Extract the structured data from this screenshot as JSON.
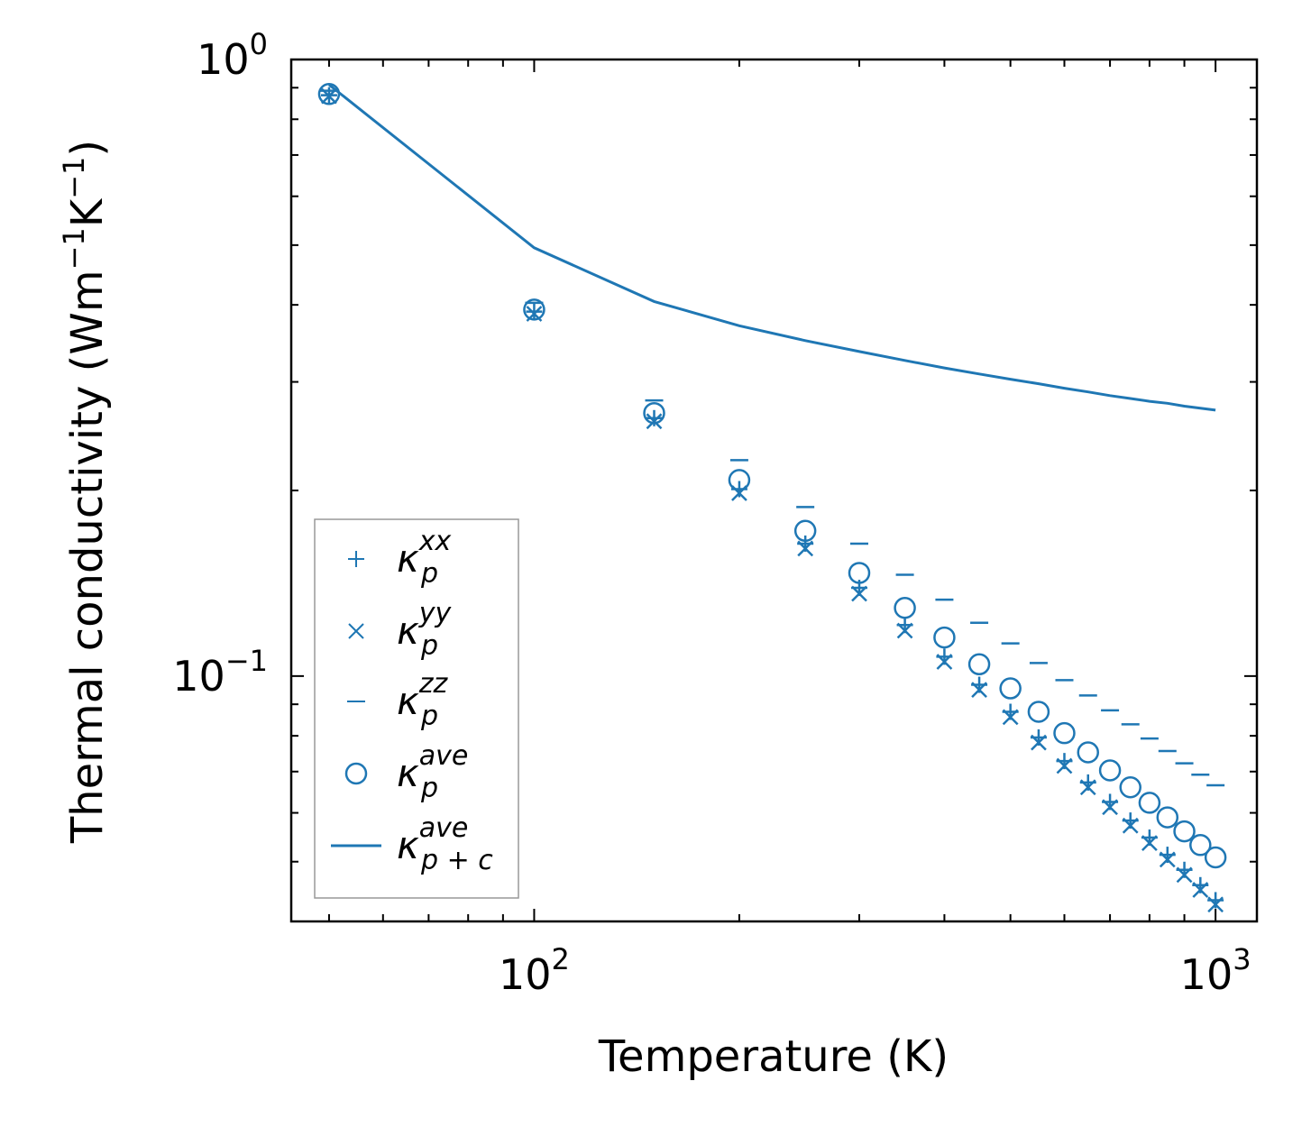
{
  "chart_data": {
    "type": "scatter",
    "xscale": "log",
    "yscale": "log",
    "xlim": [
      44,
      1150
    ],
    "ylim": [
      0.04,
      1.0
    ],
    "xlabel": "Temperature (K)",
    "ylabel_main": "Thermal conductivity (Wm",
    "ylabel_exp1": "−1",
    "ylabel_mid": "K",
    "ylabel_exp2": "−1",
    "ylabel_close": ")",
    "x_ticks": [
      {
        "value": 100,
        "base": "10",
        "exp": "2"
      },
      {
        "value": 1000,
        "base": "10",
        "exp": "3"
      }
    ],
    "y_ticks": [
      {
        "value": 1.0,
        "base": "10",
        "exp": "0"
      },
      {
        "value": 0.1,
        "base": "10",
        "exp": "−1"
      }
    ],
    "color": "#1f77b4",
    "x": [
      50,
      100,
      150,
      200,
      250,
      300,
      350,
      400,
      450,
      500,
      550,
      600,
      650,
      700,
      750,
      800,
      850,
      900,
      950,
      1000
    ],
    "series": [
      {
        "name": "κp^xx",
        "base": "κ",
        "sub": "p",
        "sup": "xx",
        "marker": "plus",
        "values": [
          0.875,
          0.39,
          0.262,
          0.201,
          0.164,
          0.139,
          0.121,
          0.1075,
          0.0968,
          0.0875,
          0.0795,
          0.0728,
          0.0672,
          0.0625,
          0.0583,
          0.0547,
          0.0513,
          0.0485,
          0.0458,
          0.0433
        ]
      },
      {
        "name": "κp^yy",
        "base": "κ",
        "sub": "p",
        "sup": "yy",
        "marker": "x",
        "values": [
          0.872,
          0.387,
          0.259,
          0.198,
          0.161,
          0.136,
          0.1185,
          0.1055,
          0.095,
          0.0858,
          0.078,
          0.0715,
          0.066,
          0.0613,
          0.0572,
          0.0536,
          0.0504,
          0.0476,
          0.045,
          0.0426
        ]
      },
      {
        "name": "κp^zz",
        "base": "κ",
        "sub": "p",
        "sup": "zz",
        "marker": "hline",
        "values": [
          0.89,
          0.403,
          0.28,
          0.224,
          0.188,
          0.164,
          0.146,
          0.133,
          0.122,
          0.113,
          0.105,
          0.0985,
          0.093,
          0.088,
          0.0835,
          0.0792,
          0.0756,
          0.0722,
          0.0692,
          0.0665
        ]
      },
      {
        "name": "κp^ave",
        "base": "κ",
        "sub": "p",
        "sup": "ave",
        "marker": "circle",
        "values": [
          0.879,
          0.393,
          0.267,
          0.208,
          0.172,
          0.147,
          0.129,
          0.1155,
          0.1045,
          0.0955,
          0.0875,
          0.0808,
          0.0752,
          0.0703,
          0.066,
          0.0623,
          0.059,
          0.056,
          0.0532,
          0.0508
        ]
      },
      {
        "name": "κp+c^ave",
        "base": "κ",
        "sub": "p + c",
        "sup": "ave",
        "marker": "line",
        "values": [
          0.91,
          0.495,
          0.405,
          0.37,
          0.35,
          0.336,
          0.325,
          0.316,
          0.309,
          0.303,
          0.298,
          0.293,
          0.289,
          0.285,
          0.282,
          0.279,
          0.277,
          0.274,
          0.272,
          0.27
        ]
      }
    ],
    "legend_location": "lower left",
    "grid": false
  }
}
